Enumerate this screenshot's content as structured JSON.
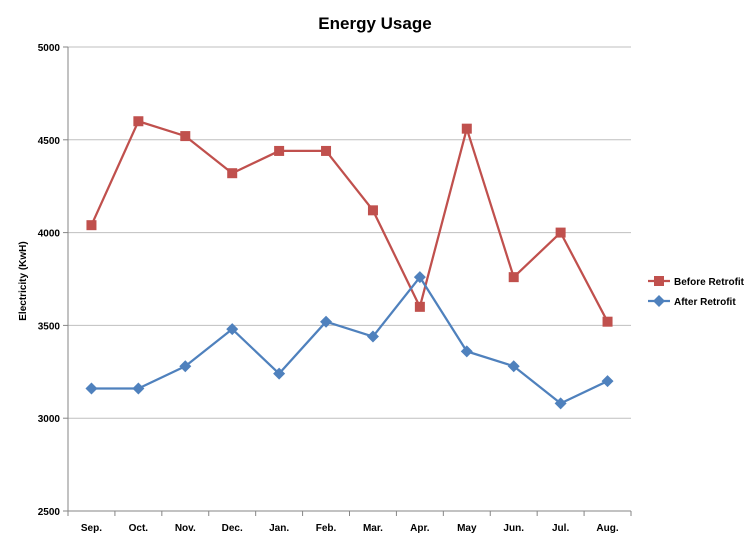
{
  "chart_data": {
    "type": "line",
    "title": "Energy Usage",
    "xlabel": "",
    "ylabel": "Electricity (KwH)",
    "ylim": [
      2500,
      5000
    ],
    "yticks": [
      2500,
      3000,
      3500,
      4000,
      4500,
      5000
    ],
    "grid": true,
    "legend_position": "right",
    "categories": [
      "Sep.",
      "Oct.",
      "Nov.",
      "Dec.",
      "Jan.",
      "Feb.",
      "Mar.",
      "Apr.",
      "May",
      "Jun.",
      "Jul.",
      "Aug."
    ],
    "series": [
      {
        "name": "Before Retrofit",
        "color": "#c0504d",
        "marker": "square",
        "values": [
          4040,
          4600,
          4520,
          4320,
          4440,
          4440,
          4120,
          3600,
          4560,
          3760,
          4000,
          3520
        ]
      },
      {
        "name": "After Retrofit",
        "color": "#4f81bd",
        "marker": "diamond",
        "values": [
          3160,
          3160,
          3280,
          3480,
          3240,
          3520,
          3440,
          3760,
          3360,
          3280,
          3080,
          3200
        ]
      }
    ]
  }
}
